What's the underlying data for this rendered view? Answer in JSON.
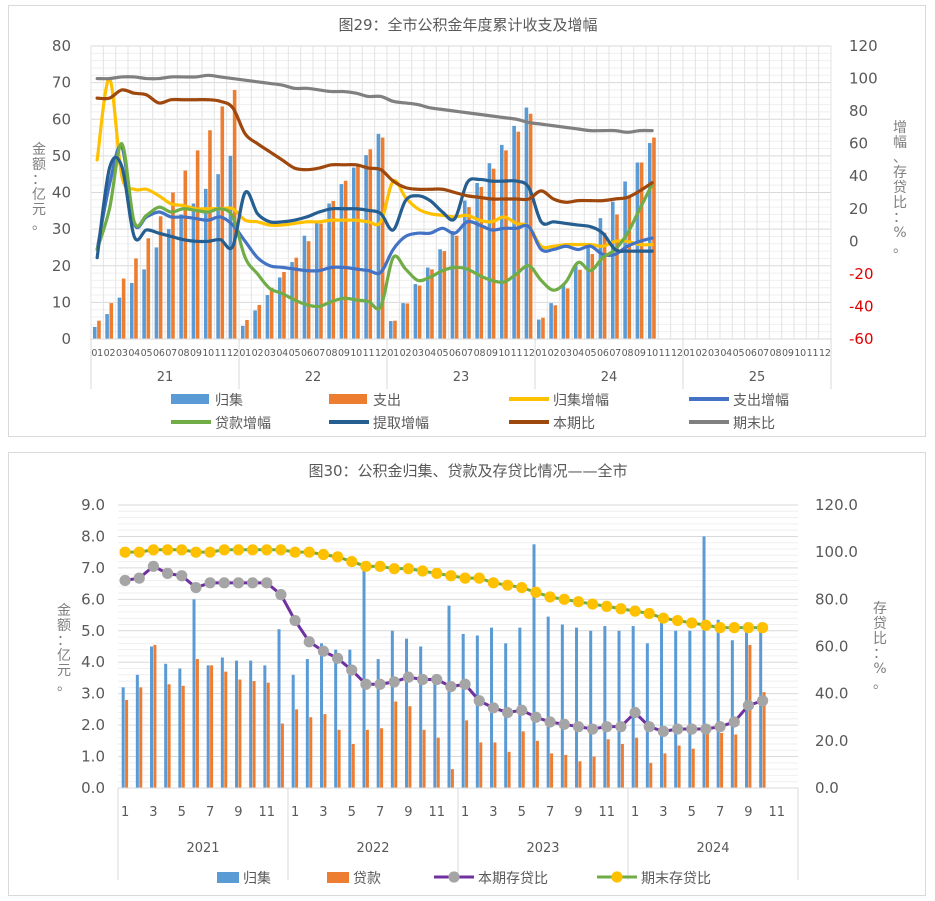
{
  "chart_data": [
    {
      "type": "bar",
      "title": "图29：全市公积金年度累计收支及增幅",
      "ylabel": "金额：亿元。",
      "y2label": "增幅、存贷比：%。",
      "ylim": [
        0,
        80
      ],
      "y_ticks": [
        "0",
        "10",
        "20",
        "30",
        "40",
        "50",
        "60",
        "70",
        "80"
      ],
      "y2lim": [
        -60,
        120
      ],
      "y2_ticks": [
        "-60",
        "-40",
        "-20",
        "0",
        "20",
        "40",
        "60",
        "80",
        "100",
        "120"
      ],
      "y2_negative_color": "#e00000",
      "grid": true,
      "month_labels": [
        "01",
        "02",
        "03",
        "04",
        "05",
        "06",
        "07",
        "08",
        "09",
        "10",
        "11",
        "12"
      ],
      "year_labels": [
        "21",
        "22",
        "23",
        "24",
        "25"
      ],
      "legend_position": "bottom",
      "series": [
        {
          "name": "归集",
          "kind": "bar",
          "axis": "left",
          "color": "#5b9bd5",
          "values": [
            3.3,
            6.8,
            11.3,
            15.3,
            19,
            25,
            30,
            34,
            37,
            41,
            45,
            50,
            3.6,
            7.8,
            12,
            16.8,
            21,
            28.2,
            32.3,
            37,
            42.3,
            46.8,
            50.2,
            56,
            4.9,
            9.8,
            15,
            19.5,
            24.5,
            29.5,
            37.8,
            42.6,
            48,
            53,
            58.2,
            63.2,
            5.3,
            9.8,
            15,
            20,
            25,
            33,
            37.5,
            43,
            48.2,
            53.5
          ]
        },
        {
          "name": "支出",
          "kind": "bar",
          "axis": "left",
          "color": "#ed7d31",
          "values": [
            5,
            9.8,
            16.5,
            22,
            27.5,
            33.5,
            40,
            46,
            51.5,
            57,
            63.5,
            68,
            5.2,
            9.3,
            14,
            18.3,
            22.2,
            26.7,
            31.5,
            37.7,
            43.2,
            47.3,
            51.8,
            55,
            5,
            9.7,
            14.6,
            19,
            24,
            28.2,
            36,
            41.5,
            46.5,
            51.5,
            56.6,
            61.5,
            5.8,
            9.2,
            13.8,
            18.9,
            23.2,
            29,
            34,
            39,
            48.2,
            55
          ]
        },
        {
          "name": "归集增幅",
          "kind": "line",
          "axis": "right",
          "color": "#ffc000",
          "values": [
            50,
            100,
            40,
            32,
            32,
            28,
            23,
            22,
            20,
            20,
            20,
            20,
            13,
            12,
            10,
            10,
            11,
            12,
            12,
            13,
            13,
            13,
            12,
            12,
            37,
            27,
            20,
            17,
            16,
            15,
            16,
            13,
            12,
            15,
            11,
            9,
            -3,
            -3,
            -2,
            -2,
            -2,
            -3,
            0,
            0,
            -2,
            -2
          ]
        },
        {
          "name": "支出增幅",
          "kind": "line",
          "axis": "right",
          "color": "#4472c4",
          "values": [
            -5,
            35,
            58,
            11,
            15,
            18,
            15,
            15,
            14,
            13,
            15,
            10,
            0,
            -10,
            -15,
            -16,
            -17,
            -18,
            -18,
            -16,
            -16,
            -17,
            -18,
            -19,
            -5,
            3,
            5,
            5,
            8,
            5,
            12,
            10,
            7,
            8,
            8,
            9,
            -5,
            -5,
            -3,
            -5,
            -3,
            -8,
            -8,
            -3,
            0,
            2
          ]
        },
        {
          "name": "贷款增幅",
          "kind": "line",
          "axis": "right",
          "color": "#70ad47",
          "values": [
            -5,
            20,
            60,
            12,
            16,
            21,
            18,
            20,
            19,
            18,
            20,
            15,
            -10,
            -20,
            -29,
            -32,
            -36,
            -39,
            -40,
            -37,
            -35,
            -36,
            -37,
            -40,
            -10,
            -17,
            -24,
            -22,
            -18,
            -16,
            -17,
            -21,
            -24,
            -25,
            -20,
            -15,
            -24,
            -30,
            -25,
            -13,
            -18,
            -10,
            -5,
            5,
            20,
            35
          ]
        },
        {
          "name": "提取增幅",
          "kind": "line",
          "axis": "right",
          "color": "#255e91",
          "values": [
            -10,
            45,
            46,
            3,
            7,
            5,
            3,
            1,
            0,
            0,
            1,
            -3,
            30,
            17,
            12,
            12,
            13,
            15,
            18,
            20,
            20,
            20,
            19,
            17,
            7,
            25,
            28,
            25,
            18,
            14,
            36,
            38,
            37,
            37,
            37,
            33,
            12,
            12,
            11,
            10,
            9,
            5,
            -5,
            -6,
            -6,
            -6
          ]
        },
        {
          "name": "本期比",
          "kind": "line",
          "axis": "right",
          "color": "#9e480e",
          "values": [
            88,
            88,
            93,
            91,
            90,
            85,
            87,
            87,
            87,
            87,
            86,
            82,
            66,
            60,
            55,
            50,
            45,
            44,
            45,
            47,
            47,
            47,
            45,
            44,
            37,
            33,
            32,
            32,
            32,
            30,
            28,
            27,
            26,
            26,
            26,
            26,
            31,
            26,
            24,
            25,
            25,
            25,
            26,
            27,
            31,
            36
          ]
        },
        {
          "name": "期末比",
          "kind": "line",
          "axis": "right",
          "color": "#808080",
          "values": [
            100,
            100,
            101,
            101,
            100,
            100,
            101,
            101,
            101,
            102,
            101,
            100,
            99,
            98,
            97,
            96,
            94,
            94,
            93,
            92,
            92,
            91,
            89,
            89,
            86,
            85,
            84,
            82,
            81,
            80,
            79,
            78,
            77,
            76,
            75,
            73,
            72,
            71,
            70,
            69,
            68,
            68,
            68,
            67,
            68,
            68
          ]
        }
      ]
    },
    {
      "type": "bar",
      "title": "图30：公积金归集、贷款及存贷比情况——全市",
      "ylabel": "金额：亿元。",
      "y2label": "存贷比：%。",
      "ylim": [
        0,
        9
      ],
      "y_ticks": [
        "0.0",
        "1.0",
        "2.0",
        "3.0",
        "4.0",
        "5.0",
        "6.0",
        "7.0",
        "8.0",
        "9.0"
      ],
      "y2lim": [
        0,
        120
      ],
      "y2_ticks": [
        "0.0",
        "20.0",
        "40.0",
        "60.0",
        "80.0",
        "100.0",
        "120.0"
      ],
      "grid": true,
      "month_labels": [
        "1",
        "3",
        "5",
        "7",
        "9",
        "11"
      ],
      "year_labels": [
        "2021",
        "2022",
        "2023",
        "2024"
      ],
      "legend_position": "bottom",
      "series": [
        {
          "name": "归集",
          "kind": "bar",
          "axis": "left",
          "color": "#5b9bd5",
          "values": [
            3.2,
            3.6,
            4.5,
            3.95,
            3.8,
            6.0,
            3.9,
            4.15,
            4.05,
            4.05,
            3.9,
            5.05,
            3.6,
            4.1,
            4.6,
            4.4,
            4.4,
            7.0,
            4.1,
            5.0,
            4.75,
            4.5,
            3.45,
            5.8,
            4.9,
            4.85,
            5.1,
            4.6,
            5.1,
            7.75,
            5.45,
            5.2,
            5.1,
            5.0,
            5.15,
            5.0,
            5.15,
            4.6,
            5.3,
            5.0,
            5.0,
            8.0,
            5.35,
            4.7,
            5.0,
            5.0
          ]
        },
        {
          "name": "贷款",
          "kind": "bar",
          "axis": "left",
          "color": "#ed7d31",
          "values": [
            2.8,
            3.2,
            4.55,
            3.3,
            3.25,
            4.1,
            3.9,
            3.7,
            3.45,
            3.4,
            3.35,
            2.05,
            2.5,
            2.25,
            2.35,
            1.85,
            1.4,
            1.85,
            1.9,
            2.75,
            2.6,
            1.85,
            1.6,
            0.6,
            2.15,
            1.45,
            1.45,
            1.15,
            1.8,
            1.5,
            1.1,
            1.05,
            0.85,
            1.0,
            1.55,
            1.4,
            1.6,
            0.8,
            1.1,
            1.35,
            1.25,
            1.8,
            1.75,
            1.7,
            4.55,
            3.05
          ]
        },
        {
          "name": "本期存贷比",
          "kind": "line-marker",
          "axis": "right",
          "color": "#7030a0",
          "marker_color": "#a5a5a5",
          "values": [
            88,
            89,
            94,
            91,
            90,
            85,
            87,
            87,
            87,
            87,
            87,
            82,
            71,
            62,
            58,
            55,
            50,
            44,
            44,
            45,
            47,
            46,
            46,
            43,
            44,
            37,
            34,
            32,
            33,
            30,
            28,
            27,
            26,
            25,
            26,
            26,
            32,
            26,
            24,
            25,
            25,
            25,
            26,
            28,
            35,
            37
          ]
        },
        {
          "name": "期末存贷比",
          "kind": "line-marker",
          "axis": "right",
          "color": "#70ad47",
          "marker_color": "#ffc000",
          "values": [
            100,
            100,
            101,
            101,
            101,
            100,
            100,
            101,
            101,
            101,
            101,
            101,
            100,
            100,
            99,
            98,
            96,
            94,
            94,
            93,
            93,
            92,
            91,
            90,
            89,
            89,
            87,
            86,
            85,
            83,
            81,
            80,
            79,
            78,
            77,
            76,
            75,
            74,
            72,
            71,
            70,
            69,
            68,
            68,
            68,
            68
          ]
        }
      ]
    }
  ]
}
